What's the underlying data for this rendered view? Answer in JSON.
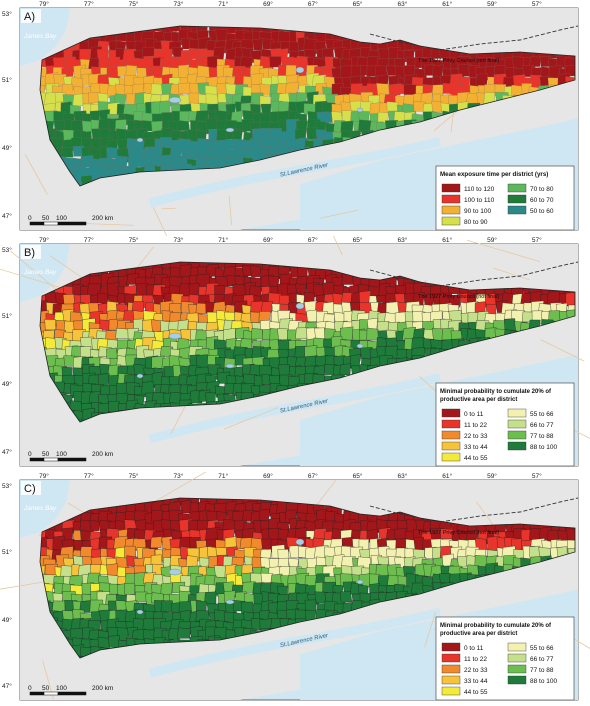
{
  "panels": [
    {
      "label": "A)",
      "lat_labels": [
        "53°",
        "51°",
        "49°",
        "47°"
      ],
      "lon_labels": [
        "79°",
        "77°",
        "75°",
        "73°",
        "71°",
        "69°",
        "67°",
        "65°",
        "63°",
        "61°",
        "59°",
        "57°"
      ],
      "place_labels": {
        "bay": "James Bay",
        "river": "St.Lawrence River",
        "boundary": "The 1927 Privy Council (not final)"
      },
      "scalebar": {
        "ticks": [
          "0",
          "50",
          "100",
          "200 km"
        ]
      },
      "legend": {
        "title": "Mean exposure time per district (yrs)",
        "columns": 2,
        "items": [
          {
            "label": "110 to 120",
            "color": "#a3161a"
          },
          {
            "label": "70 to 80",
            "color": "#5cb85c"
          },
          {
            "label": "100 to 110",
            "color": "#e8342b"
          },
          {
            "label": "60 to 70",
            "color": "#1e7b3a"
          },
          {
            "label": "90 to 100",
            "color": "#f2b133"
          },
          {
            "label": "50 to 60",
            "color": "#2a8a8a"
          },
          {
            "label": "80 to 90",
            "color": "#d6e04a"
          }
        ]
      }
    },
    {
      "label": "B)",
      "lat_labels": [
        "53°",
        "51°",
        "49°",
        "47°"
      ],
      "lon_labels": [
        "79°",
        "77°",
        "75°",
        "73°",
        "71°",
        "69°",
        "67°",
        "65°",
        "63°",
        "61°",
        "59°",
        "57°"
      ],
      "place_labels": {
        "bay": "James Bay",
        "river": "St.Lawrence River",
        "boundary": "The 1927 Privy Council (not final)"
      },
      "scalebar": {
        "ticks": [
          "0",
          "50",
          "100",
          "200 km"
        ]
      },
      "legend": {
        "title": "Minimal probability to cumulate 20% of productive area per district",
        "columns": 2,
        "items": [
          {
            "label": "0 to 11",
            "color": "#a3161a"
          },
          {
            "label": "55 to 66",
            "color": "#f3f1b0"
          },
          {
            "label": "11 to 22",
            "color": "#e8342b"
          },
          {
            "label": "66 to 77",
            "color": "#c5e08a"
          },
          {
            "label": "22 to 33",
            "color": "#f08a2c"
          },
          {
            "label": "77 to 88",
            "color": "#6cbf4e"
          },
          {
            "label": "33 to 44",
            "color": "#f6c33a"
          },
          {
            "label": "88 to 100",
            "color": "#1e7b3a"
          },
          {
            "label": "44 to 55",
            "color": "#f3ea3a"
          }
        ]
      }
    },
    {
      "label": "C)",
      "lat_labels": [
        "53°",
        "51°",
        "49°",
        "47°"
      ],
      "lon_labels": [
        "79°",
        "77°",
        "75°",
        "73°",
        "71°",
        "69°",
        "67°",
        "65°",
        "63°",
        "61°",
        "59°",
        "57°"
      ],
      "place_labels": {
        "bay": "James Bay",
        "river": "St.Lawrence River",
        "boundary": "The 1927 Privy Council (not final)"
      },
      "scalebar": {
        "ticks": [
          "0",
          "50",
          "100",
          "200 km"
        ]
      },
      "legend": {
        "title": "Minimal probability to cumulate 20% of productive area per district",
        "columns": 2,
        "items": [
          {
            "label": "0 to 11",
            "color": "#a3161a"
          },
          {
            "label": "55 to 66",
            "color": "#f3f1b0"
          },
          {
            "label": "11 to 22",
            "color": "#e8342b"
          },
          {
            "label": "66 to 77",
            "color": "#c5e08a"
          },
          {
            "label": "22 to 33",
            "color": "#f08a2c"
          },
          {
            "label": "77 to 88",
            "color": "#6cbf4e"
          },
          {
            "label": "33 to 44",
            "color": "#f6c33a"
          },
          {
            "label": "88 to 100",
            "color": "#1e7b3a"
          },
          {
            "label": "44 to 55",
            "color": "#f3ea3a"
          }
        ]
      }
    }
  ],
  "colors": {
    "water": "#cfe6f3",
    "land": "#e6e6e6",
    "road": "#e5c9a3",
    "border": "#ffffff"
  }
}
